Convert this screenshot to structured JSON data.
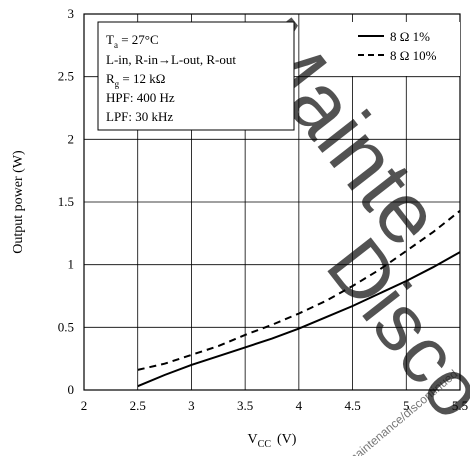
{
  "chart_data": {
    "type": "line",
    "xlabel_main": "V",
    "xlabel_sub": "CC",
    "xlabel_unit": "(V)",
    "ylabel": "Output power  (W)",
    "xlim": [
      2,
      5.5
    ],
    "ylim": [
      0,
      3
    ],
    "xticks": [
      "2",
      "2.5",
      "3",
      "3.5",
      "4",
      "4.5",
      "5",
      "5.5"
    ],
    "yticks": [
      "0",
      "0.5",
      "1",
      "1.5",
      "2",
      "2.5",
      "3"
    ],
    "grid": true,
    "legend_position": "top-right",
    "series": [
      {
        "name": "8 Ω  1%",
        "style": "solid",
        "x": [
          2.5,
          2.75,
          3,
          3.25,
          3.5,
          3.75,
          4,
          4.25,
          4.5,
          4.75,
          5,
          5.25,
          5.5
        ],
        "y": [
          0.03,
          0.12,
          0.2,
          0.27,
          0.34,
          0.41,
          0.49,
          0.58,
          0.67,
          0.77,
          0.87,
          0.98,
          1.1
        ]
      },
      {
        "name": "8 Ω  10%",
        "style": "dashed",
        "x": [
          2.5,
          2.75,
          3,
          3.25,
          3.5,
          3.75,
          4,
          4.25,
          4.5,
          4.75,
          5,
          5.25,
          5.5
        ],
        "y": [
          0.16,
          0.21,
          0.28,
          0.35,
          0.44,
          0.52,
          0.61,
          0.71,
          0.83,
          0.96,
          1.11,
          1.26,
          1.43
        ]
      }
    ],
    "conditions": [
      {
        "main": "T",
        "sub": "a",
        "rest": " = 27°C"
      },
      {
        "main": "L-in, R-in→L-out, R-out",
        "sub": "",
        "rest": ""
      },
      {
        "main": "R",
        "sub": "g",
        "rest": " = 12 kΩ"
      },
      {
        "main": "HPF: 400 Hz",
        "sub": "",
        "rest": ""
      },
      {
        "main": "LPF: 30 kHz",
        "sub": "",
        "rest": ""
      }
    ]
  },
  "watermark": {
    "line1": "Maintenance",
    "line2": "Discontinued",
    "small_text": "maintenance/discontinued",
    "color": "#ff0000"
  }
}
